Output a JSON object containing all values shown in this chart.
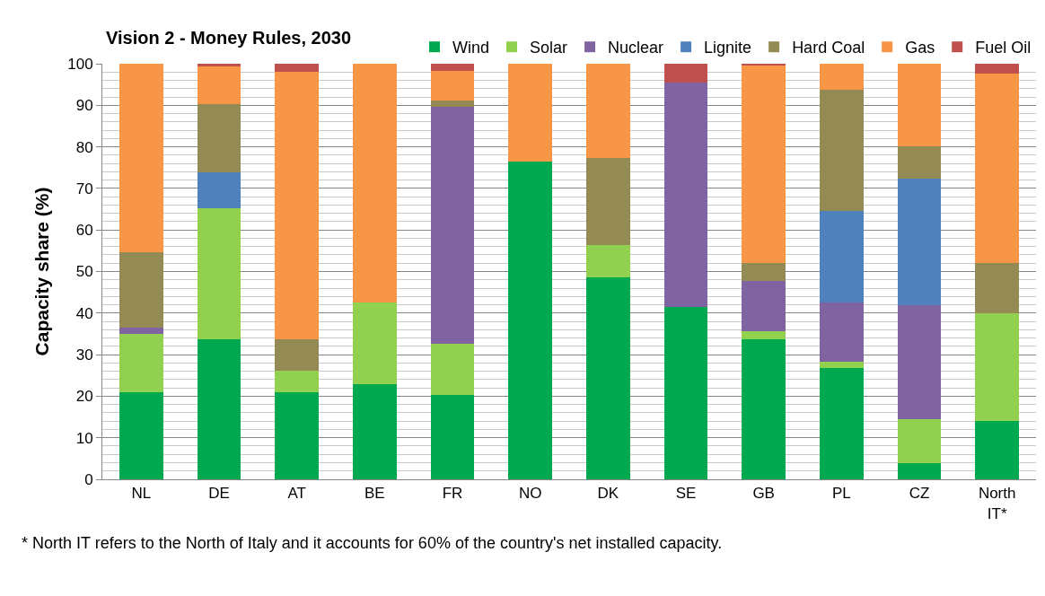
{
  "chart_data": {
    "type": "bar",
    "title": "Vision 2 - Money Rules, 2030",
    "ylabel": "Capacity share (%)",
    "categories": [
      "NL",
      "DE",
      "AT",
      "BE",
      "FR",
      "NO",
      "DK",
      "SE",
      "GB",
      "PL",
      "CZ",
      "North IT*"
    ],
    "stacked": true,
    "series": [
      {
        "name": "Wind",
        "color": "#00a94f",
        "values": [
          21.0,
          33.8,
          20.9,
          23.0,
          20.3,
          76.4,
          48.7,
          41.5,
          33.7,
          26.7,
          3.9,
          14.0
        ]
      },
      {
        "name": "Solar",
        "color": "#92d050",
        "values": [
          14.0,
          31.5,
          5.3,
          19.5,
          12.3,
          null,
          7.7,
          null,
          2.0,
          1.6,
          10.5,
          25.9
        ]
      },
      {
        "name": "Nuclear",
        "color": "#8064a2",
        "values": [
          1.5,
          null,
          null,
          null,
          57.0,
          null,
          null,
          54.0,
          12.0,
          14.2,
          27.4,
          null
        ]
      },
      {
        "name": "Lignite",
        "color": "#4f81bd",
        "values": [
          null,
          8.6,
          null,
          null,
          null,
          null,
          null,
          null,
          null,
          22.1,
          30.5,
          null
        ]
      },
      {
        "name": "Hard Coal",
        "color": "#948a54",
        "values": [
          18.2,
          16.4,
          7.6,
          null,
          1.5,
          null,
          20.9,
          null,
          4.3,
          29.2,
          7.8,
          12.1
        ]
      },
      {
        "name": "Gas",
        "color": "#f79646",
        "values": [
          45.3,
          9.1,
          64.2,
          57.5,
          7.2,
          23.6,
          22.7,
          null,
          47.6,
          6.2,
          19.9,
          45.6
        ]
      },
      {
        "name": "Fuel Oil",
        "color": "#c0504d",
        "values": [
          null,
          0.6,
          2.0,
          null,
          1.7,
          null,
          null,
          4.5,
          0.4,
          null,
          null,
          2.4
        ]
      }
    ],
    "ylim": [
      0,
      100
    ],
    "yticks": [
      0,
      {
        "value": 2,
        "label": null
      },
      {
        "value": 4,
        "label": null
      },
      {
        "value": 6,
        "label": null
      },
      {
        "value": 8,
        "label": null
      },
      10,
      {
        "value": 12,
        "label": null
      },
      {
        "value": 14,
        "label": null
      },
      {
        "value": 16,
        "label": null
      },
      {
        "value": 18,
        "label": null
      },
      20,
      {
        "value": 22,
        "label": null
      },
      {
        "value": 24,
        "label": null
      },
      {
        "value": 26,
        "label": null
      },
      {
        "value": 28,
        "label": null
      },
      30,
      {
        "value": 32,
        "label": null
      },
      {
        "value": 34,
        "label": null
      },
      {
        "value": 36,
        "label": null
      },
      {
        "value": 38,
        "label": null
      },
      40,
      {
        "value": 42,
        "label": null
      },
      {
        "value": 44,
        "label": null
      },
      {
        "value": 46,
        "label": null
      },
      {
        "value": 48,
        "label": null
      },
      50,
      {
        "value": 52,
        "label": null
      },
      {
        "value": 54,
        "label": null
      },
      {
        "value": 56,
        "label": null
      },
      {
        "value": 58,
        "label": null
      },
      60,
      {
        "value": 62,
        "label": null
      },
      {
        "value": 64,
        "label": null
      },
      {
        "value": 66,
        "label": null
      },
      {
        "value": 68,
        "label": null
      },
      70,
      {
        "value": 72,
        "label": null
      },
      {
        "value": 74,
        "label": null
      },
      {
        "value": 76,
        "label": null
      },
      {
        "value": 78,
        "label": null
      },
      80,
      {
        "value": 82,
        "label": null
      },
      {
        "value": 84,
        "label": null
      },
      {
        "value": 86,
        "label": null
      },
      {
        "value": 88,
        "label": null
      },
      90,
      {
        "value": 92,
        "label": null
      },
      {
        "value": 94,
        "label": null
      },
      {
        "value": 96,
        "label": null
      },
      {
        "value": 98,
        "label": null
      },
      100
    ],
    "grid": "y",
    "legend": "top right",
    "annotations": [
      "* North IT refers to the North of Italy and it accounts for 60% of the country's net installed capacity."
    ]
  }
}
